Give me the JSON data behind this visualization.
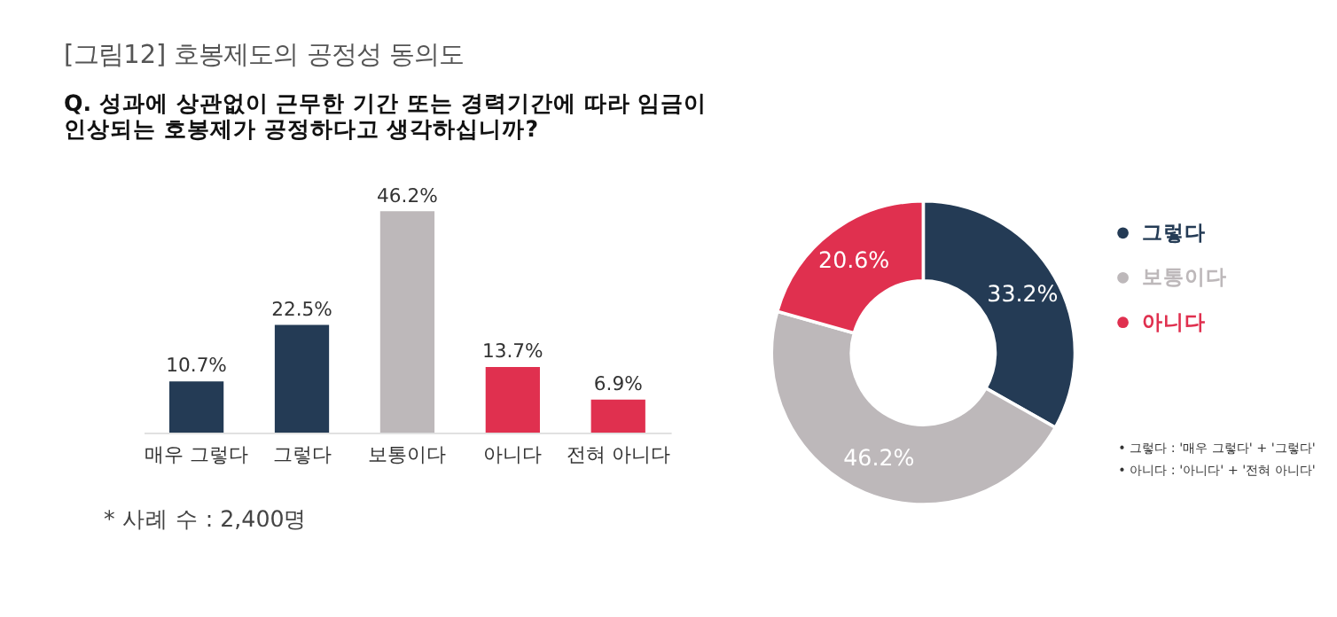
{
  "chart_data": [
    {
      "type": "bar",
      "title": "[그림12] 호봉제도의 공정성 동의도",
      "subtitle": "Q. 성과에 상관없이 근무한 기간 또는 경력기간에 따라 임금이\n인상되는 호봉제가 공정하다고 생각하십니까?",
      "categories": [
        "매우 그렇다",
        "그렇다",
        "보통이다",
        "아니다",
        "전혀 아니다"
      ],
      "values": [
        10.7,
        22.5,
        46.2,
        13.7,
        6.9
      ],
      "colors": [
        "#243b55",
        "#243b55",
        "#bdb8ba",
        "#e0304f",
        "#e0304f"
      ],
      "value_labels": [
        "10.7%",
        "22.5%",
        "46.2%",
        "13.7%",
        "6.9%"
      ],
      "annotations": [
        "* 사례 수 : 2,400명"
      ]
    },
    {
      "type": "donut",
      "categories": [
        "그렇다",
        "보통이다",
        "아니다"
      ],
      "values": [
        33.2,
        46.2,
        20.6
      ],
      "colors": [
        "#243b55",
        "#bdb8ba",
        "#e0304f"
      ],
      "value_labels": [
        "33.2%",
        "46.2%",
        "20.6%"
      ],
      "legend": "right",
      "annotations": [
        "• 그렇다 : '매우 그렇다' + '그렇다'",
        "• 아니다 : '아니다' + '전혀 아니다'"
      ]
    }
  ]
}
